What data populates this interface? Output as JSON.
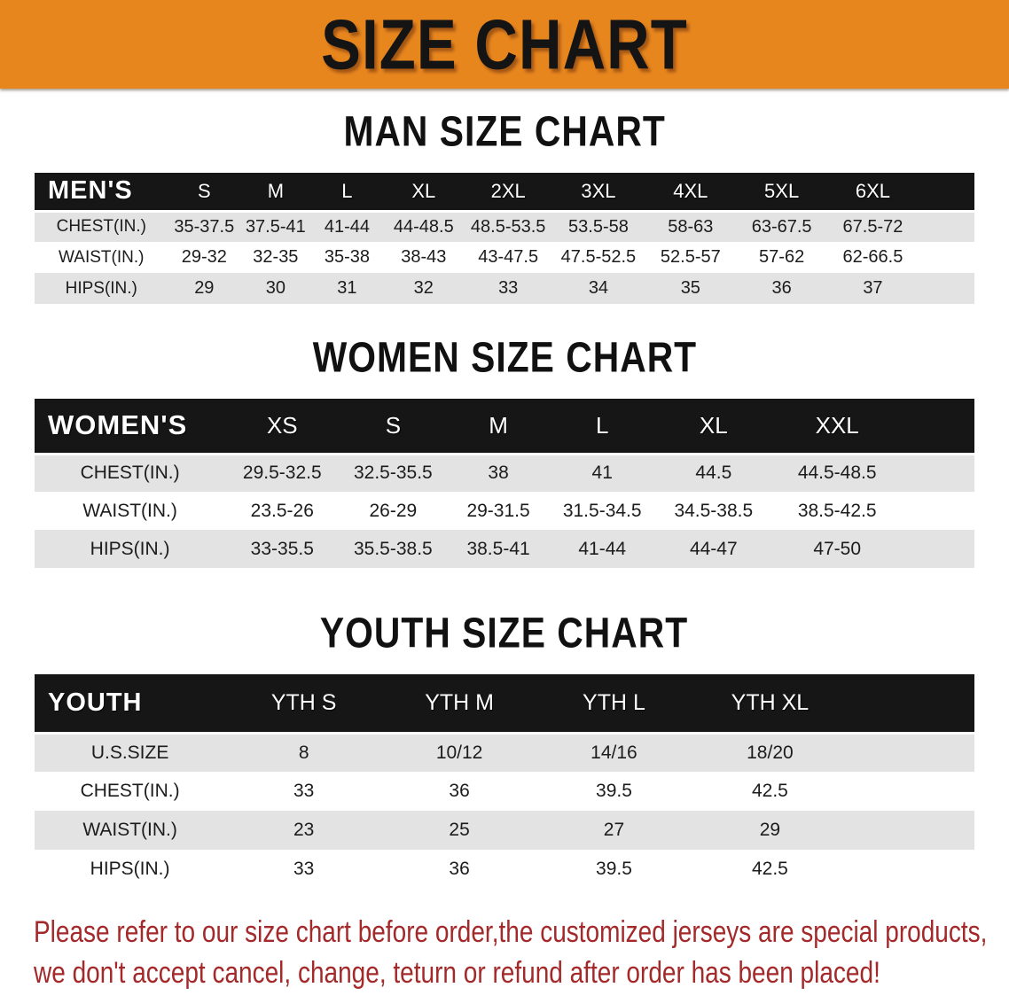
{
  "banner": {
    "title": "SIZE CHART",
    "background_color": "#e8861e",
    "text_color": "#141414"
  },
  "sections": [
    {
      "heading": "MAN SIZE CHART",
      "table": {
        "label_header": "MEN'S",
        "columns": [
          "S",
          "M",
          "L",
          "XL",
          "2XL",
          "3XL",
          "4XL",
          "5XL",
          "6XL"
        ],
        "rows": [
          {
            "label": "CHEST(IN.)",
            "values": [
              "35-37.5",
              "37.5-41",
              "41-44",
              "44-48.5",
              "48.5-53.5",
              "53.5-58",
              "58-63",
              "63-67.5",
              "67.5-72"
            ]
          },
          {
            "label": "WAIST(IN.)",
            "values": [
              "29-32",
              "32-35",
              "35-38",
              "38-43",
              "43-47.5",
              "47.5-52.5",
              "52.5-57",
              "57-62",
              "62-66.5"
            ]
          },
          {
            "label": "HIPS(IN.)",
            "values": [
              "29",
              "30",
              "31",
              "32",
              "33",
              "34",
              "35",
              "36",
              "37"
            ]
          }
        ]
      }
    },
    {
      "heading": "WOMEN SIZE CHART",
      "table": {
        "label_header": "WOMEN'S",
        "columns": [
          "XS",
          "S",
          "M",
          "L",
          "XL",
          "XXL"
        ],
        "rows": [
          {
            "label": "CHEST(IN.)",
            "values": [
              "29.5-32.5",
              "32.5-35.5",
              "38",
              "41",
              "44.5",
              "44.5-48.5"
            ]
          },
          {
            "label": "WAIST(IN.)",
            "values": [
              "23.5-26",
              "26-29",
              "29-31.5",
              "31.5-34.5",
              "34.5-38.5",
              "38.5-42.5"
            ]
          },
          {
            "label": "HIPS(IN.)",
            "values": [
              "33-35.5",
              "35.5-38.5",
              "38.5-41",
              "41-44",
              "44-47",
              "47-50"
            ]
          }
        ]
      }
    },
    {
      "heading": "YOUTH SIZE CHART",
      "table": {
        "label_header": "YOUTH",
        "columns": [
          "YTH S",
          "YTH M",
          "YTH L",
          "YTH XL"
        ],
        "rows": [
          {
            "label": "U.S.SIZE",
            "values": [
              "8",
              "10/12",
              "14/16",
              "18/20"
            ]
          },
          {
            "label": "CHEST(IN.)",
            "values": [
              "33",
              "36",
              "39.5",
              "42.5"
            ]
          },
          {
            "label": "WAIST(IN.)",
            "values": [
              "23",
              "25",
              "27",
              "29"
            ]
          },
          {
            "label": "HIPS(IN.)",
            "values": [
              "33",
              "36",
              "39.5",
              "42.5"
            ]
          }
        ]
      }
    }
  ],
  "disclaimer": {
    "color": "#a3292a",
    "lines": [
      "Please refer to our size chart before order,the customized jerseys are special products,",
      "we don't accept cancel, change, teturn or refund after order has been placed!"
    ]
  }
}
